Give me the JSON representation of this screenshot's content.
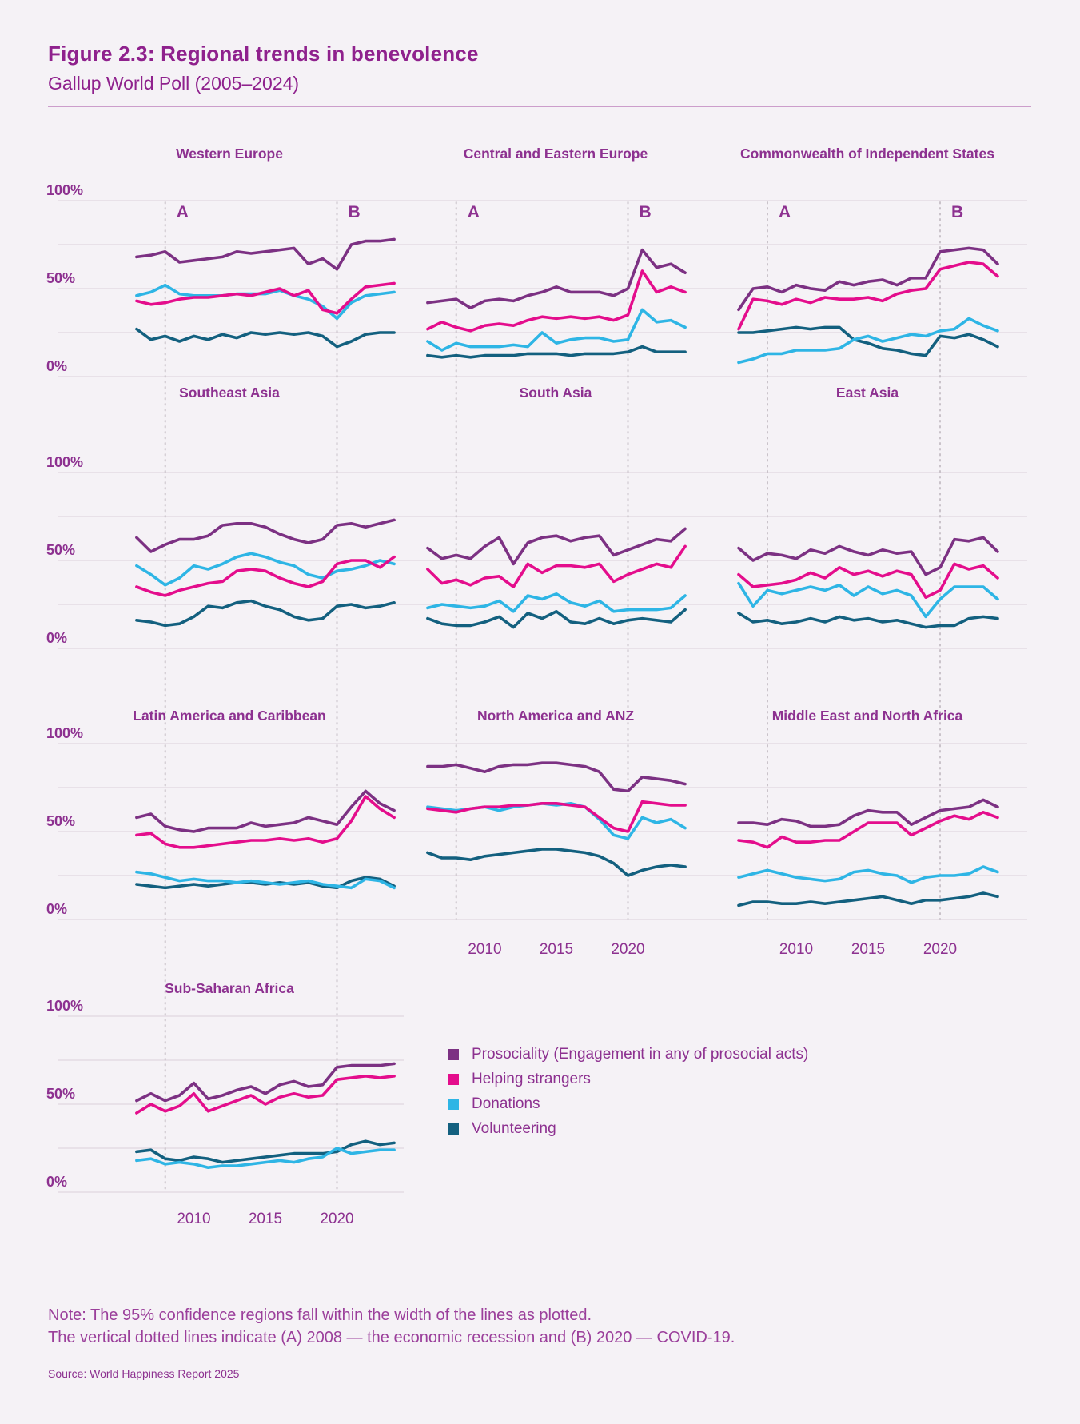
{
  "figure": {
    "title": "Figure 2.3: Regional trends in benevolence",
    "subtitle": "Gallup World Poll (2005–2024)"
  },
  "legend": [
    {
      "key": "prosociality",
      "label": "Prosociality (Engagement in any of prosocial acts)",
      "color": "#7c3183"
    },
    {
      "key": "helping_strangers",
      "label": "Helping strangers",
      "color": "#e40d8c"
    },
    {
      "key": "donations",
      "label": "Donations",
      "color": "#2eb5e5"
    },
    {
      "key": "volunteering",
      "label": "Volunteering",
      "color": "#13607f"
    }
  ],
  "note": {
    "line1": "Note: The 95% confidence regions fall within the width of the lines as plotted.",
    "line2": "The vertical dotted lines indicate (A) 2008 — the economic recession and (B) 2020 — COVID-19."
  },
  "source": "Source: World Happiness Report 2025",
  "chart_data": {
    "type": "line",
    "x": [
      2006,
      2007,
      2008,
      2009,
      2010,
      2011,
      2012,
      2013,
      2014,
      2015,
      2016,
      2017,
      2018,
      2019,
      2020,
      2021,
      2022,
      2023,
      2024
    ],
    "ylim": [
      0,
      100
    ],
    "grid_interval": 25,
    "grid": true,
    "y_tick_labels": [
      "100%",
      "50%",
      "0%"
    ],
    "y_tick_values": [
      100,
      50,
      0
    ],
    "x_tick_labels": [
      "2010",
      "2015",
      "2020"
    ],
    "x_tick_values": [
      2010,
      2015,
      2020
    ],
    "event_markers": [
      {
        "label": "A",
        "year": 2008
      },
      {
        "label": "B",
        "year": 2020
      }
    ],
    "legend_position": "bottom-center-right",
    "series_keys": [
      "volunteering",
      "donations",
      "helping_strangers",
      "prosociality"
    ],
    "colors": {
      "prosociality": "#7c3183",
      "helping_strangers": "#e40d8c",
      "donations": "#2eb5e5",
      "volunteering": "#13607f"
    },
    "panels": [
      {
        "title": "Western Europe",
        "row": 0,
        "col": 0,
        "series": {
          "prosociality": [
            68,
            69,
            71,
            65,
            66,
            67,
            68,
            71,
            70,
            71,
            72,
            73,
            64,
            67,
            61,
            75,
            77,
            77,
            78
          ],
          "helping_strangers": [
            43,
            41,
            42,
            44,
            45,
            45,
            46,
            47,
            46,
            48,
            50,
            46,
            49,
            38,
            36,
            44,
            51,
            52,
            53
          ],
          "donations": [
            46,
            48,
            52,
            47,
            46,
            46,
            46,
            47,
            47,
            47,
            49,
            46,
            44,
            40,
            33,
            42,
            46,
            47,
            48
          ],
          "volunteering": [
            27,
            21,
            23,
            20,
            23,
            21,
            24,
            22,
            25,
            24,
            25,
            24,
            25,
            23,
            17,
            20,
            24,
            25,
            25
          ]
        }
      },
      {
        "title": "Central and Eastern Europe",
        "row": 0,
        "col": 1,
        "series": {
          "prosociality": [
            42,
            43,
            44,
            39,
            43,
            44,
            43,
            46,
            48,
            51,
            48,
            48,
            48,
            46,
            50,
            72,
            62,
            64,
            59
          ],
          "helping_strangers": [
            27,
            31,
            28,
            26,
            29,
            30,
            29,
            32,
            34,
            33,
            34,
            33,
            34,
            32,
            35,
            60,
            48,
            51,
            48
          ],
          "donations": [
            20,
            15,
            19,
            17,
            17,
            17,
            18,
            17,
            25,
            19,
            21,
            22,
            22,
            20,
            21,
            38,
            31,
            32,
            28
          ],
          "volunteering": [
            12,
            11,
            12,
            11,
            12,
            12,
            12,
            13,
            13,
            13,
            12,
            13,
            13,
            13,
            14,
            17,
            14,
            14,
            14
          ]
        }
      },
      {
        "title": "Commonwealth of Independent States",
        "row": 0,
        "col": 2,
        "series": {
          "prosociality": [
            38,
            50,
            51,
            48,
            52,
            50,
            49,
            54,
            52,
            54,
            55,
            52,
            56,
            56,
            71,
            72,
            73,
            72,
            64
          ],
          "helping_strangers": [
            27,
            44,
            43,
            41,
            44,
            42,
            45,
            44,
            44,
            45,
            43,
            47,
            49,
            50,
            61,
            63,
            65,
            64,
            57
          ],
          "donations": [
            8,
            10,
            13,
            13,
            15,
            15,
            15,
            16,
            21,
            23,
            20,
            22,
            24,
            23,
            26,
            27,
            33,
            29,
            26
          ],
          "volunteering": [
            25,
            25,
            26,
            27,
            28,
            27,
            28,
            28,
            21,
            19,
            16,
            15,
            13,
            12,
            23,
            22,
            24,
            21,
            17
          ]
        }
      },
      {
        "title": "Southeast Asia",
        "row": 1,
        "col": 0,
        "series": {
          "prosociality": [
            63,
            55,
            59,
            62,
            62,
            64,
            70,
            71,
            71,
            69,
            65,
            62,
            60,
            62,
            70,
            71,
            69,
            71,
            73
          ],
          "helping_strangers": [
            35,
            32,
            30,
            33,
            35,
            37,
            38,
            44,
            45,
            44,
            40,
            37,
            35,
            38,
            48,
            50,
            50,
            46,
            52
          ],
          "donations": [
            47,
            42,
            36,
            40,
            47,
            45,
            48,
            52,
            54,
            52,
            49,
            47,
            42,
            40,
            44,
            45,
            47,
            50,
            48
          ],
          "volunteering": [
            16,
            15,
            13,
            14,
            18,
            24,
            23,
            26,
            27,
            24,
            22,
            18,
            16,
            17,
            24,
            25,
            23,
            24,
            26
          ]
        }
      },
      {
        "title": "South Asia",
        "row": 1,
        "col": 1,
        "series": {
          "prosociality": [
            57,
            51,
            53,
            51,
            58,
            63,
            48,
            60,
            63,
            64,
            61,
            63,
            64,
            53,
            56,
            59,
            62,
            61,
            68
          ],
          "helping_strangers": [
            45,
            37,
            39,
            36,
            40,
            41,
            35,
            48,
            43,
            47,
            47,
            46,
            48,
            38,
            42,
            45,
            48,
            46,
            58
          ],
          "donations": [
            23,
            25,
            24,
            23,
            24,
            27,
            21,
            30,
            28,
            31,
            26,
            24,
            27,
            21,
            22,
            22,
            22,
            23,
            30
          ],
          "volunteering": [
            17,
            14,
            13,
            13,
            15,
            18,
            12,
            20,
            17,
            21,
            15,
            14,
            17,
            14,
            16,
            17,
            16,
            15,
            22
          ]
        }
      },
      {
        "title": "East Asia",
        "row": 1,
        "col": 2,
        "series": {
          "prosociality": [
            57,
            50,
            54,
            53,
            51,
            56,
            54,
            58,
            55,
            53,
            56,
            54,
            55,
            42,
            46,
            62,
            61,
            63,
            55
          ],
          "helping_strangers": [
            42,
            35,
            36,
            37,
            39,
            43,
            40,
            46,
            42,
            44,
            41,
            44,
            42,
            29,
            33,
            48,
            45,
            47,
            40
          ],
          "donations": [
            37,
            24,
            33,
            31,
            33,
            35,
            33,
            36,
            30,
            35,
            31,
            33,
            30,
            18,
            28,
            35,
            35,
            35,
            28
          ],
          "volunteering": [
            20,
            15,
            16,
            14,
            15,
            17,
            15,
            18,
            16,
            17,
            15,
            16,
            14,
            12,
            13,
            13,
            17,
            18,
            17
          ]
        }
      },
      {
        "title": "Latin America and Caribbean",
        "row": 2,
        "col": 0,
        "series": {
          "prosociality": [
            58,
            60,
            53,
            51,
            50,
            52,
            52,
            52,
            55,
            53,
            54,
            55,
            58,
            56,
            54,
            64,
            73,
            66,
            62
          ],
          "helping_strangers": [
            48,
            49,
            43,
            41,
            41,
            42,
            43,
            44,
            45,
            45,
            46,
            45,
            46,
            44,
            46,
            56,
            70,
            63,
            58
          ],
          "donations": [
            27,
            26,
            24,
            22,
            23,
            22,
            22,
            21,
            22,
            21,
            20,
            21,
            22,
            20,
            19,
            18,
            23,
            22,
            18
          ],
          "volunteering": [
            20,
            19,
            18,
            19,
            20,
            19,
            20,
            21,
            21,
            20,
            21,
            20,
            21,
            19,
            18,
            22,
            24,
            23,
            19
          ]
        }
      },
      {
        "title": "North America and ANZ",
        "row": 2,
        "col": 1,
        "series": {
          "prosociality": [
            87,
            87,
            88,
            86,
            84,
            87,
            88,
            88,
            89,
            89,
            88,
            87,
            84,
            74,
            73,
            81,
            80,
            79,
            77
          ],
          "helping_strangers": [
            63,
            62,
            61,
            63,
            64,
            64,
            65,
            65,
            66,
            66,
            65,
            64,
            58,
            52,
            50,
            67,
            66,
            65,
            65
          ],
          "donations": [
            64,
            63,
            62,
            63,
            64,
            62,
            64,
            65,
            66,
            65,
            66,
            64,
            57,
            48,
            46,
            58,
            55,
            57,
            52
          ],
          "volunteering": [
            38,
            35,
            35,
            34,
            36,
            37,
            38,
            39,
            40,
            40,
            39,
            38,
            36,
            32,
            25,
            28,
            30,
            31,
            30
          ]
        }
      },
      {
        "title": "Middle East and North Africa",
        "row": 2,
        "col": 2,
        "series": {
          "prosociality": [
            55,
            55,
            54,
            57,
            56,
            53,
            53,
            54,
            59,
            62,
            61,
            61,
            54,
            58,
            62,
            63,
            64,
            68,
            64
          ],
          "helping_strangers": [
            45,
            44,
            41,
            47,
            44,
            44,
            45,
            45,
            50,
            55,
            55,
            55,
            48,
            52,
            56,
            59,
            57,
            61,
            58
          ],
          "donations": [
            24,
            26,
            28,
            26,
            24,
            23,
            22,
            23,
            27,
            28,
            26,
            25,
            21,
            24,
            25,
            25,
            26,
            30,
            27
          ],
          "volunteering": [
            8,
            10,
            10,
            9,
            9,
            10,
            9,
            10,
            11,
            12,
            13,
            11,
            9,
            11,
            11,
            12,
            13,
            15,
            13
          ]
        }
      },
      {
        "title": "Sub-Saharan Africa",
        "row": 3,
        "col": 0,
        "series": {
          "prosociality": [
            52,
            56,
            52,
            55,
            62,
            53,
            55,
            58,
            60,
            56,
            61,
            63,
            60,
            61,
            71,
            72,
            72,
            72,
            73
          ],
          "helping_strangers": [
            45,
            50,
            46,
            49,
            56,
            46,
            49,
            52,
            55,
            50,
            54,
            56,
            54,
            55,
            64,
            65,
            66,
            65,
            66
          ],
          "donations": [
            18,
            19,
            16,
            17,
            16,
            14,
            15,
            15,
            16,
            17,
            18,
            17,
            19,
            20,
            25,
            22,
            23,
            24,
            24
          ],
          "volunteering": [
            23,
            24,
            19,
            18,
            20,
            19,
            17,
            18,
            19,
            20,
            21,
            22,
            22,
            22,
            23,
            27,
            29,
            27,
            28
          ]
        }
      }
    ]
  }
}
